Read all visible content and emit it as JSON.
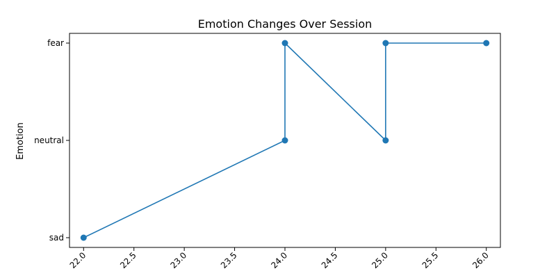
{
  "chart_data": {
    "type": "line",
    "title": "Emotion Changes Over Session",
    "xlabel": "",
    "ylabel": "Emotion",
    "x_ticks": [
      "22.0",
      "22.5",
      "23.0",
      "23.5",
      "24.0",
      "24.5",
      "25.0",
      "25.5",
      "26.0"
    ],
    "xlim": [
      21.86,
      26.14
    ],
    "y_categories": [
      "sad",
      "neutral",
      "fear"
    ],
    "series": [
      {
        "color": "#1f77b4",
        "marker": "circle",
        "points": [
          {
            "x": 22,
            "y": "sad"
          },
          {
            "x": 24,
            "y": "neutral"
          },
          {
            "x": 24,
            "y": "fear"
          },
          {
            "x": 25,
            "y": "neutral"
          },
          {
            "x": 25,
            "y": "fear"
          },
          {
            "x": 26,
            "y": "fear"
          }
        ]
      }
    ],
    "grid": false,
    "legend": "none"
  }
}
